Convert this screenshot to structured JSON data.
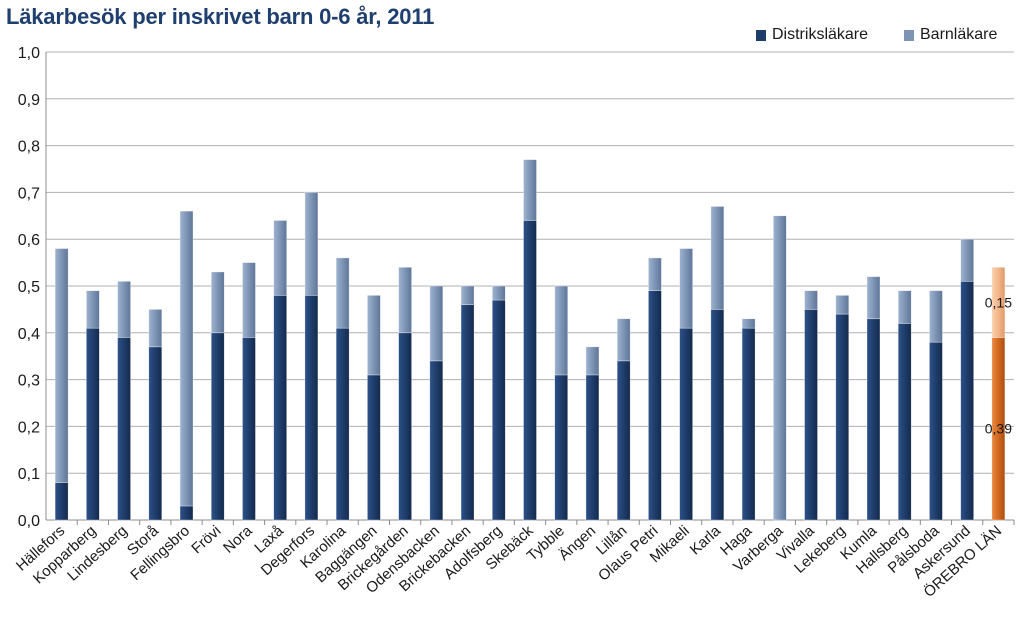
{
  "chart_data": {
    "type": "bar",
    "stacked": true,
    "title": "Läkarbesök per inskrivet barn 0-6 år, 2011",
    "xlabel": "",
    "ylabel": "",
    "ylim": [
      0,
      1.0
    ],
    "yticks": [
      "0,0",
      "0,1",
      "0,2",
      "0,3",
      "0,4",
      "0,5",
      "0,6",
      "0,7",
      "0,8",
      "0,9",
      "1,0"
    ],
    "grid": true,
    "legend_position": "top-right",
    "categories": [
      "Hällefors",
      "Kopparberg",
      "Lindesberg",
      "Storå",
      "Fellingsbro",
      "Frövi",
      "Nora",
      "Laxå",
      "Degerfors",
      "Karolina",
      "Baggängen",
      "Brickegården",
      "Odensbacken",
      "Brickebacken",
      "Adolfsberg",
      "Skebäck",
      "Tybble",
      "Ängen",
      "Lillån",
      "Olaus Petri",
      "Mikaeli",
      "Karla",
      "Haga",
      "Varberga",
      "Vivalla",
      "Lekeberg",
      "Kumla",
      "Hallsberg",
      "Pålsboda",
      "Askersund",
      "ÖREBRO LÄN"
    ],
    "series": [
      {
        "name": "Distriksläkare",
        "color": "#1f3d6b",
        "values": [
          0.08,
          0.41,
          0.39,
          0.37,
          0.03,
          0.4,
          0.39,
          0.48,
          0.48,
          0.41,
          0.31,
          0.4,
          0.34,
          0.46,
          0.47,
          0.64,
          0.31,
          0.31,
          0.34,
          0.49,
          0.41,
          0.45,
          0.41,
          0.0,
          0.45,
          0.44,
          0.43,
          0.42,
          0.38,
          0.51,
          0.39
        ]
      },
      {
        "name": "Barnläkare",
        "color": "#7d94b5",
        "values": [
          0.5,
          0.08,
          0.12,
          0.08,
          0.63,
          0.13,
          0.16,
          0.16,
          0.22,
          0.15,
          0.17,
          0.14,
          0.16,
          0.04,
          0.03,
          0.13,
          0.19,
          0.06,
          0.09,
          0.07,
          0.17,
          0.22,
          0.02,
          0.65,
          0.04,
          0.04,
          0.09,
          0.07,
          0.11,
          0.09,
          0.15
        ]
      }
    ],
    "highlight": {
      "category": "ÖREBRO LÄN",
      "colors": [
        "#d2691e",
        "#f4b78a"
      ]
    },
    "data_labels": [
      {
        "category": "ÖREBRO LÄN",
        "series": "Barnläkare",
        "text": "0,15"
      },
      {
        "category": "ÖREBRO LÄN",
        "series": "Distriksläkare",
        "text": "0,39"
      }
    ]
  }
}
